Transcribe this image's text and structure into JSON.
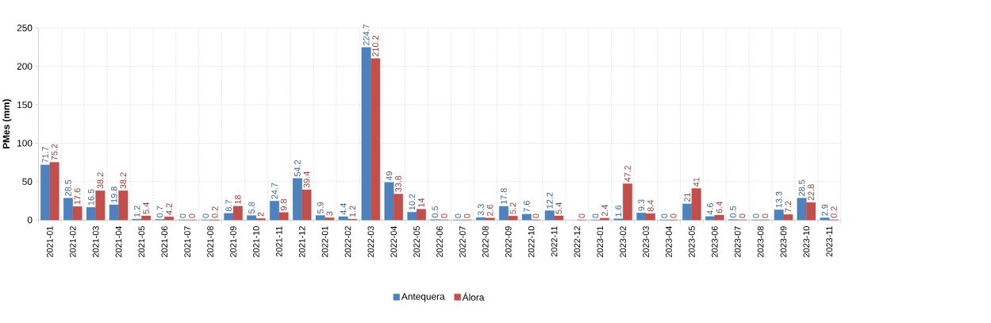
{
  "chart_data": {
    "type": "bar",
    "ylabel": "PMes (mm)",
    "categories": [
      "2021-01",
      "2021-02",
      "2021-03",
      "2021-04",
      "2021-05",
      "2021-06",
      "2021-07",
      "2021-08",
      "2021-09",
      "2021-10",
      "2021-11",
      "2021-12",
      "2022-01",
      "2022-02",
      "2022-03",
      "2022-04",
      "2022-05",
      "2022-06",
      "2022-07",
      "2022-08",
      "2022-09",
      "2022-10",
      "2022-11",
      "2022-12",
      "2023-01",
      "2023-02",
      "2023-03",
      "2023-04",
      "2023-05",
      "2023-06",
      "2023-07",
      "2023-08",
      "2023-09",
      "2023-10",
      "2023-11"
    ],
    "series": [
      {
        "name": "Antequera",
        "color": "#4f81bd",
        "values": [
          71.7,
          28.5,
          16.5,
          19.8,
          1.2,
          0.7,
          0,
          0,
          8.7,
          5.8,
          24.7,
          54.2,
          5.9,
          4.4,
          224.7,
          49,
          10.2,
          0.5,
          0,
          3.3,
          17.8,
          7.6,
          12.2,
          null,
          0,
          1.6,
          9.3,
          0,
          21,
          4.6,
          0.5,
          0,
          13.3,
          28.5,
          2.9
        ]
      },
      {
        "name": "Álora",
        "color": "#c0504d",
        "values": [
          75.2,
          17.6,
          38.2,
          38.2,
          5.4,
          4.2,
          0,
          0.2,
          18,
          2,
          9.8,
          39.4,
          3,
          1.2,
          210.2,
          33.8,
          14,
          0,
          0,
          2.6,
          5.2,
          0,
          5.4,
          0,
          2.4,
          47.2,
          8.4,
          0,
          41,
          6.4,
          0,
          0,
          7.2,
          22.8,
          0.2
        ]
      }
    ],
    "ylim": [
      0,
      250
    ],
    "yticks": [
      0,
      50,
      100,
      150,
      200,
      250
    ],
    "grid": true,
    "legend": "bottom",
    "data_labels": true
  }
}
